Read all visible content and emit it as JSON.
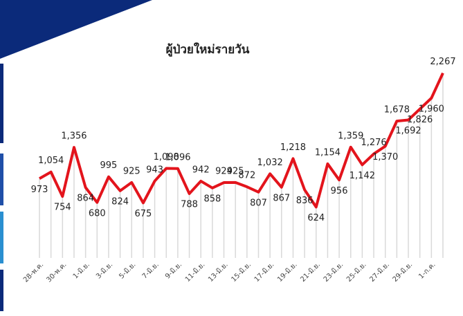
{
  "chart_data": {
    "type": "line",
    "title": "ผู้ป่วยใหม่รายวัน",
    "categories": [
      "28-พ.ค.",
      null,
      "30-พ.ค.",
      null,
      "1-มิ.ย.",
      null,
      "3-มิ.ย.",
      null,
      "5-มิ.ย.",
      null,
      "7-มิ.ย.",
      null,
      "9-มิ.ย.",
      null,
      "11-มิ.ย.",
      null,
      "13-มิ.ย.",
      null,
      "15-มิ.ย.",
      null,
      "17-มิ.ย.",
      null,
      "19-มิ.ย.",
      null,
      "21-มิ.ย.",
      null,
      "23-มิ.ย.",
      null,
      "25-มิ.ย.",
      null,
      "27-มิ.ย.",
      null,
      "29-มิ.ย.",
      null,
      "1-ก.ค.",
      null
    ],
    "values": [
      973,
      1054,
      754,
      1356,
      864,
      680,
      995,
      824,
      925,
      675,
      943,
      1098,
      1096,
      788,
      942,
      858,
      924,
      925,
      872,
      807,
      1032,
      867,
      1218,
      836,
      624,
      1154,
      956,
      1359,
      1142,
      1276,
      1370,
      1678,
      1692,
      1826,
      1960,
      2267
    ],
    "value_labels": [
      "973",
      "1,054",
      "754",
      "1,356",
      "864",
      "680",
      "995",
      "824",
      "925",
      "675",
      "943",
      "1,098",
      "1,096",
      "788",
      "942",
      "858",
      "924",
      "925",
      "872",
      "807",
      "1,032",
      "867",
      "1,218",
      "836",
      "624",
      "1,154",
      "956",
      "1,359",
      "1,142",
      "1,276",
      "1,370",
      "1,678",
      "1,692",
      "1,826",
      "1,960",
      "2,267"
    ],
    "color": "#e3141c",
    "drop_line_color": "#d9d9d9",
    "ylim": [
      0,
      2400
    ]
  }
}
